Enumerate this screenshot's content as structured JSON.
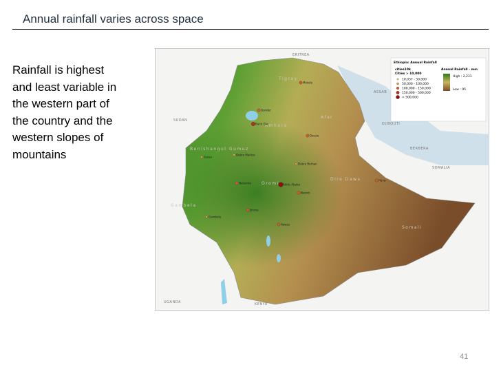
{
  "slide": {
    "title": "Annual rainfall varies across space",
    "body_lines": [
      "Rainfall is highest",
      "and least variable in",
      "the western part of",
      "the country and the",
      "western slopes of",
      "mountains"
    ],
    "page_number": "41"
  },
  "map": {
    "legend": {
      "title": "Ethiopia: Annual Rainfall",
      "layer": "cities10k",
      "layer_desc": "Cities > 10,000",
      "classes": [
        "10,037 - 50,000",
        "50,000 - 100,000",
        "100,000 - 150,000",
        "150,000 - 500,000",
        "> 500,000"
      ],
      "raster_title": "Annual Rainfall - mm",
      "high": "High : 2,231",
      "low": "Low : 95"
    },
    "countries": [
      "ERITREA",
      "SUDAN",
      "SOMALIA",
      "KENYA",
      "UGANDA",
      "DJIBOUTI",
      "BERBERA",
      "ASSAB"
    ],
    "regions": [
      "Tigray",
      "Afar",
      "Amhara",
      "Benishangul Gumuz",
      "Oromia",
      "Gambela",
      "Somali",
      "Dire Dawa"
    ],
    "cities": [
      "Mekele",
      "Gonder",
      "Bahir Dar",
      "Dessie",
      "Debre Markos",
      "Debre Berhan",
      "Addis Ababa",
      "Nekemte",
      "Jimma",
      "Gambela",
      "Asosa",
      "Harar",
      "Nazret",
      "Awasa"
    ]
  }
}
